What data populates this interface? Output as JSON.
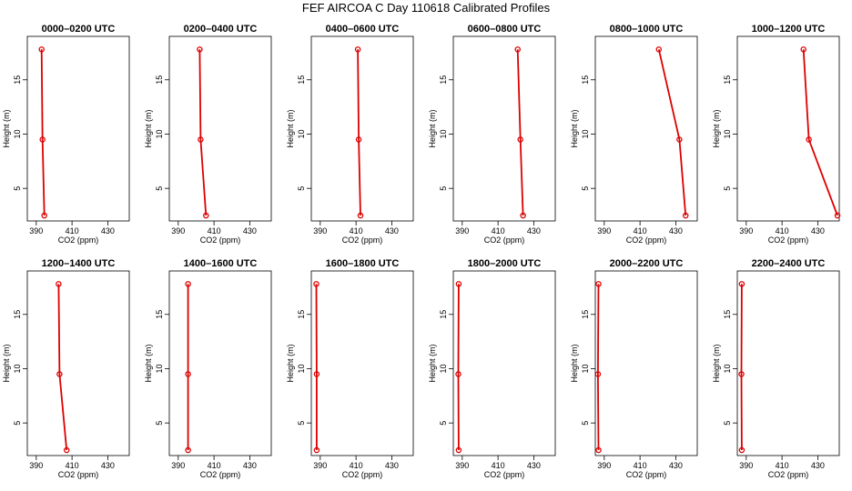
{
  "figure_title": "FEF AIRCOA C  Day 110618  Calibrated Profiles",
  "chart_data": [
    {
      "type": "line",
      "title": "0000–0200 UTC",
      "xlabel": "CO2 (ppm)",
      "ylabel": "Height (m)",
      "xlim": [
        385,
        442
      ],
      "ylim": [
        2,
        19
      ],
      "x_ticks": [
        390,
        410,
        430
      ],
      "y_ticks": [
        5,
        10,
        15
      ],
      "series": [
        {
          "x": [
            394.5,
            393.5,
            393
          ],
          "y": [
            2.5,
            9.5,
            17.8
          ]
        }
      ]
    },
    {
      "type": "line",
      "title": "0200–0400 UTC",
      "xlabel": "CO2 (ppm)",
      "ylabel": "Height (m)",
      "xlim": [
        385,
        442
      ],
      "ylim": [
        2,
        19
      ],
      "x_ticks": [
        390,
        410,
        430
      ],
      "y_ticks": [
        5,
        10,
        15
      ],
      "series": [
        {
          "x": [
            405.5,
            402.5,
            402
          ],
          "y": [
            2.5,
            9.5,
            17.8
          ]
        }
      ]
    },
    {
      "type": "line",
      "title": "0400–0600 UTC",
      "xlabel": "CO2 (ppm)",
      "ylabel": "Height (m)",
      "xlim": [
        385,
        442
      ],
      "ylim": [
        2,
        19
      ],
      "x_ticks": [
        390,
        410,
        430
      ],
      "y_ticks": [
        5,
        10,
        15
      ],
      "series": [
        {
          "x": [
            412.5,
            411.5,
            411
          ],
          "y": [
            2.5,
            9.5,
            17.8
          ]
        }
      ]
    },
    {
      "type": "line",
      "title": "0600–0800 UTC",
      "xlabel": "CO2 (ppm)",
      "ylabel": "Height (m)",
      "xlim": [
        385,
        442
      ],
      "ylim": [
        2,
        19
      ],
      "x_ticks": [
        390,
        410,
        430
      ],
      "y_ticks": [
        5,
        10,
        15
      ],
      "series": [
        {
          "x": [
            424,
            422.5,
            421
          ],
          "y": [
            2.5,
            9.5,
            17.8
          ]
        }
      ]
    },
    {
      "type": "line",
      "title": "0800–1000 UTC",
      "xlabel": "CO2 (ppm)",
      "ylabel": "Height (m)",
      "xlim": [
        385,
        442
      ],
      "ylim": [
        2,
        19
      ],
      "x_ticks": [
        390,
        410,
        430
      ],
      "y_ticks": [
        5,
        10,
        15
      ],
      "series": [
        {
          "x": [
            435.5,
            432,
            420.5
          ],
          "y": [
            2.5,
            9.5,
            17.8
          ]
        }
      ]
    },
    {
      "type": "line",
      "title": "1000–1200 UTC",
      "xlabel": "CO2 (ppm)",
      "ylabel": "Height (m)",
      "xlim": [
        385,
        442
      ],
      "ylim": [
        2,
        19
      ],
      "x_ticks": [
        390,
        410,
        430
      ],
      "y_ticks": [
        5,
        10,
        15
      ],
      "series": [
        {
          "x": [
            441,
            425,
            422
          ],
          "y": [
            2.5,
            9.5,
            17.8
          ]
        }
      ]
    },
    {
      "type": "line",
      "title": "1200–1400 UTC",
      "xlabel": "CO2 (ppm)",
      "ylabel": "Height (m)",
      "xlim": [
        385,
        442
      ],
      "ylim": [
        2,
        19
      ],
      "x_ticks": [
        390,
        410,
        430
      ],
      "y_ticks": [
        5,
        10,
        15
      ],
      "series": [
        {
          "x": [
            407,
            403,
            402.5
          ],
          "y": [
            2.5,
            9.5,
            17.8
          ]
        }
      ]
    },
    {
      "type": "line",
      "title": "1400–1600 UTC",
      "xlabel": "CO2 (ppm)",
      "ylabel": "Height (m)",
      "xlim": [
        385,
        442
      ],
      "ylim": [
        2,
        19
      ],
      "x_ticks": [
        390,
        410,
        430
      ],
      "y_ticks": [
        5,
        10,
        15
      ],
      "series": [
        {
          "x": [
            395.5,
            395.5,
            395.5
          ],
          "y": [
            2.5,
            9.5,
            17.8
          ]
        }
      ]
    },
    {
      "type": "line",
      "title": "1600–1800 UTC",
      "xlabel": "CO2 (ppm)",
      "ylabel": "Height (m)",
      "xlim": [
        385,
        442
      ],
      "ylim": [
        2,
        19
      ],
      "x_ticks": [
        390,
        410,
        430
      ],
      "y_ticks": [
        5,
        10,
        15
      ],
      "series": [
        {
          "x": [
            388,
            388,
            387.8
          ],
          "y": [
            2.5,
            9.5,
            17.8
          ]
        }
      ]
    },
    {
      "type": "line",
      "title": "1800–2000 UTC",
      "xlabel": "CO2 (ppm)",
      "ylabel": "Height (m)",
      "xlim": [
        385,
        442
      ],
      "ylim": [
        2,
        19
      ],
      "x_ticks": [
        390,
        410,
        430
      ],
      "y_ticks": [
        5,
        10,
        15
      ],
      "series": [
        {
          "x": [
            388,
            387.8,
            388
          ],
          "y": [
            2.5,
            9.5,
            17.8
          ]
        }
      ]
    },
    {
      "type": "line",
      "title": "2000–2200 UTC",
      "xlabel": "CO2 (ppm)",
      "ylabel": "Height (m)",
      "xlim": [
        385,
        442
      ],
      "ylim": [
        2,
        19
      ],
      "x_ticks": [
        390,
        410,
        430
      ],
      "y_ticks": [
        5,
        10,
        15
      ],
      "series": [
        {
          "x": [
            386.8,
            386.5,
            386.8
          ],
          "y": [
            2.5,
            9.5,
            17.8
          ]
        }
      ]
    },
    {
      "type": "line",
      "title": "2200–2400 UTC",
      "xlabel": "CO2 (ppm)",
      "ylabel": "Height (m)",
      "xlim": [
        385,
        442
      ],
      "ylim": [
        2,
        19
      ],
      "x_ticks": [
        390,
        410,
        430
      ],
      "y_ticks": [
        5,
        10,
        15
      ],
      "series": [
        {
          "x": [
            387.5,
            387.3,
            387.5
          ],
          "y": [
            2.5,
            9.5,
            17.8
          ]
        }
      ]
    }
  ],
  "colors": {
    "series": "#dd0000",
    "axis": "#000000"
  }
}
